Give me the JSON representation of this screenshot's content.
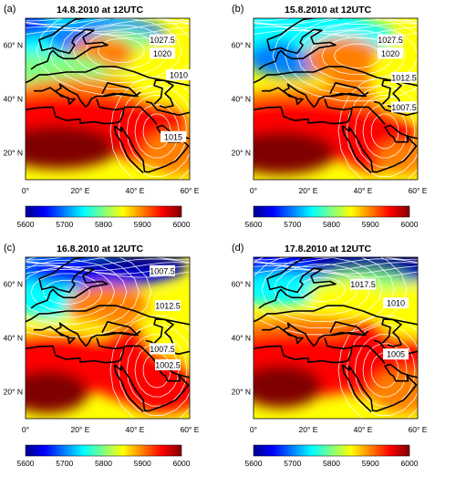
{
  "colorbar": {
    "min": 5600,
    "max": 6000,
    "ticks": [
      "5600",
      "5700",
      "5800",
      "5900",
      "6000"
    ],
    "colors": [
      "#00008f",
      "#0000ff",
      "#0080ff",
      "#00ffff",
      "#80ff80",
      "#ffff00",
      "#ff8000",
      "#ff0000",
      "#800000"
    ]
  },
  "axes": {
    "x_ticks": [
      {
        "value": 0,
        "label": "0°"
      },
      {
        "value": 20,
        "label": "20° E"
      },
      {
        "value": 40,
        "label": "40° E"
      },
      {
        "value": 60,
        "label": "60° E"
      }
    ],
    "y_ticks": [
      {
        "value": 20,
        "label": "20° N"
      },
      {
        "value": 40,
        "label": "40° N"
      },
      {
        "value": 60,
        "label": "60° N"
      }
    ],
    "lon_range": [
      0,
      60
    ],
    "lat_range": [
      10,
      70
    ]
  },
  "panels": [
    {
      "letter": "(a)",
      "title": "14.8.2010 at 12UTC",
      "contour_labels": [
        "1027.5",
        "1020",
        "1010",
        "1015"
      ]
    },
    {
      "letter": "(b)",
      "title": "15.8.2010 at 12UTC",
      "contour_labels": [
        "1027.5",
        "1020",
        "1012.5",
        "1007.5"
      ]
    },
    {
      "letter": "(c)",
      "title": "16.8.2010 at 12UTC",
      "contour_labels": [
        "1007.5",
        "1012.5",
        "1007.5",
        "1002.5"
      ]
    },
    {
      "letter": "(d)",
      "title": "17.8.2010 at 12UTC",
      "contour_labels": [
        "1017.5",
        "1010",
        "1005"
      ]
    }
  ]
}
